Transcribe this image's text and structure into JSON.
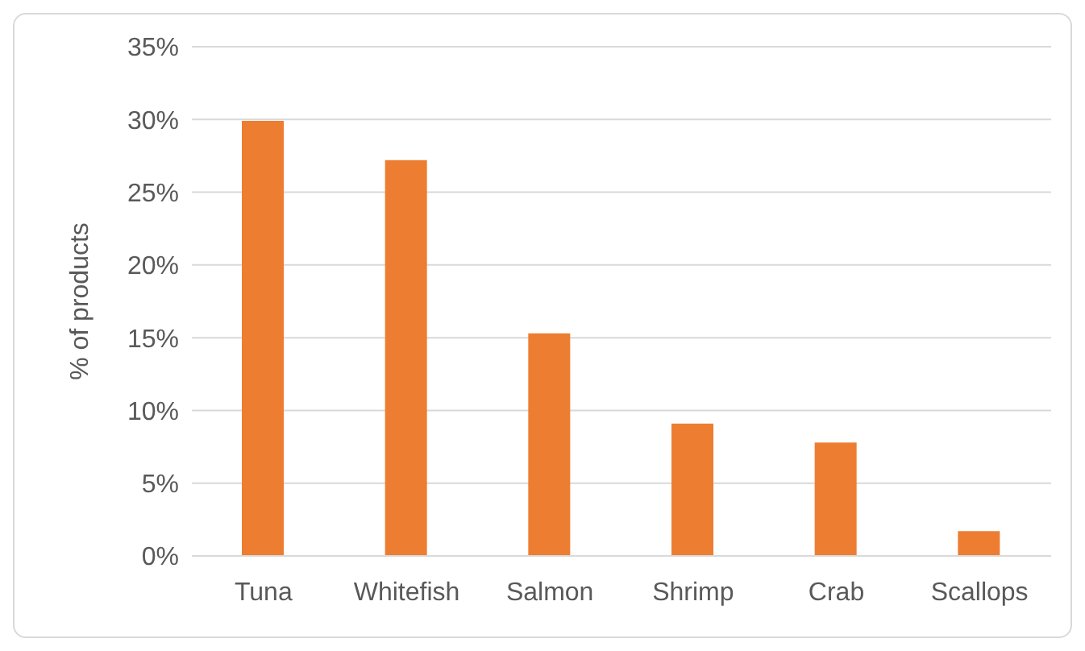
{
  "chart_data": {
    "type": "bar",
    "ylabel": "% of products",
    "categories": [
      "Tuna",
      "Whitefish",
      "Salmon",
      "Shrimp",
      "Crab",
      "Scallops"
    ],
    "values": [
      29.9,
      27.2,
      15.3,
      9.1,
      7.8,
      1.7
    ],
    "color": "#ed7d31",
    "ylim": [
      0,
      35
    ],
    "yticks": [
      {
        "value": 0,
        "label": "0%"
      },
      {
        "value": 5,
        "label": "5%"
      },
      {
        "value": 10,
        "label": "10%"
      },
      {
        "value": 15,
        "label": "15%"
      },
      {
        "value": 20,
        "label": "20%"
      },
      {
        "value": 25,
        "label": "25%"
      },
      {
        "value": 30,
        "label": "30%"
      },
      {
        "value": 35,
        "label": "35%"
      }
    ],
    "grid": "y"
  }
}
